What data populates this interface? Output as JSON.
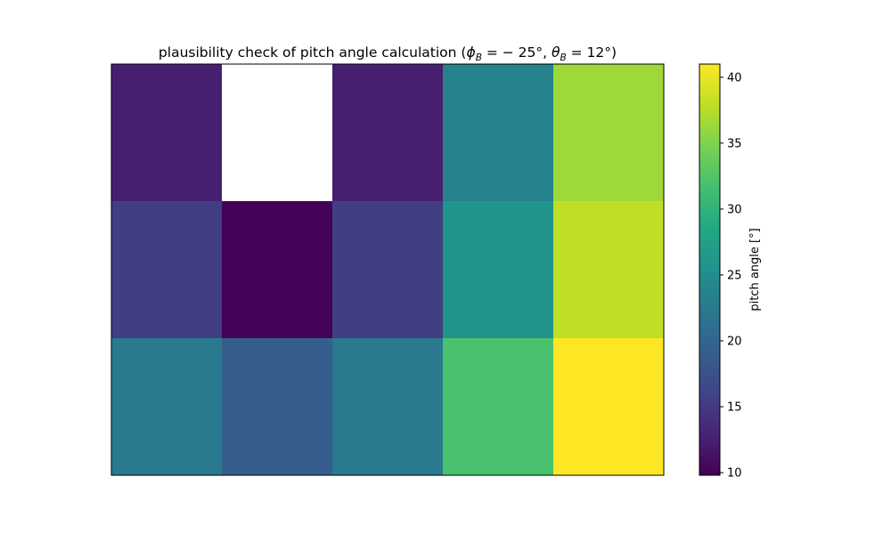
{
  "chart_data": {
    "type": "heatmap",
    "title": {
      "prefix": "plausibility check of pitch angle calculation (",
      "phi": "ϕ",
      "phi_sub": "B",
      "phi_rest": " = − 25°,  ",
      "theta": "θ",
      "theta_sub": "B",
      "theta_rest": " = 12°)"
    },
    "rows": 3,
    "cols": 5,
    "values": [
      [
        12.5,
        null,
        12.5,
        23.5,
        36.5
      ],
      [
        15.5,
        10.0,
        15.5,
        26.0,
        38.0
      ],
      [
        22.5,
        19.0,
        22.5,
        32.0,
        41.0
      ]
    ],
    "colormap": "viridis",
    "colorbar": {
      "label": "pitch angle [°]",
      "min": 9.8,
      "max": 41.0,
      "ticks": [
        10,
        15,
        20,
        25,
        30,
        35,
        40
      ],
      "tick_labels": [
        "10",
        "15",
        "20",
        "25",
        "30",
        "35",
        "40"
      ]
    },
    "xticks_visible": false,
    "yticks_visible": false,
    "missing_color": "#ffffff"
  }
}
